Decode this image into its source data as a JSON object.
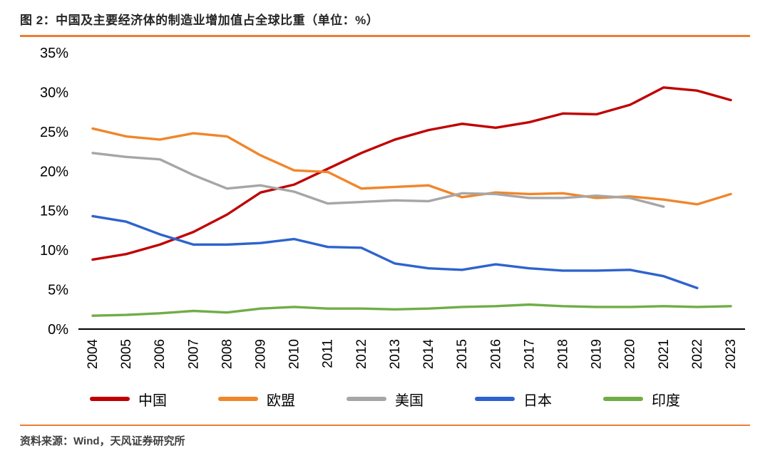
{
  "header": {
    "title": "图 2：中国及主要经济体的制造业增加值占全球比重（单位：%）"
  },
  "footer": {
    "source": "资料来源：Wind，天风证券研究所"
  },
  "accent_color": "#ED7D31",
  "chart_data": {
    "type": "line",
    "title": "中国及主要经济体的制造业增加值占全球比重（单位：%）",
    "x": [
      2004,
      2005,
      2006,
      2007,
      2008,
      2009,
      2010,
      2011,
      2012,
      2013,
      2014,
      2015,
      2016,
      2017,
      2018,
      2019,
      2020,
      2021,
      2022,
      2023
    ],
    "series": [
      {
        "name": "中国",
        "color": "#C00000",
        "values": [
          8.8,
          9.5,
          10.7,
          12.3,
          14.5,
          17.3,
          18.3,
          20.3,
          22.3,
          24.0,
          25.2,
          26.0,
          25.5,
          26.2,
          27.3,
          27.2,
          28.4,
          30.6,
          30.2,
          29.0
        ]
      },
      {
        "name": "欧盟",
        "color": "#F0862B",
        "values": [
          25.4,
          24.4,
          24.0,
          24.8,
          24.4,
          22.0,
          20.1,
          19.9,
          17.8,
          18.0,
          18.2,
          16.7,
          17.3,
          17.1,
          17.2,
          16.6,
          16.8,
          16.4,
          15.8,
          17.1
        ]
      },
      {
        "name": "美国",
        "color": "#A6A6A6",
        "values": [
          22.3,
          21.8,
          21.5,
          19.5,
          17.8,
          18.2,
          17.4,
          15.9,
          16.1,
          16.3,
          16.2,
          17.2,
          17.1,
          16.6,
          16.6,
          16.9,
          16.6,
          15.5,
          null,
          null
        ]
      },
      {
        "name": "日本",
        "color": "#2E63CE",
        "values": [
          14.3,
          13.6,
          12.0,
          10.7,
          10.7,
          10.9,
          11.4,
          10.4,
          10.3,
          8.3,
          7.7,
          7.5,
          8.2,
          7.7,
          7.4,
          7.4,
          7.5,
          6.7,
          5.2,
          null
        ]
      },
      {
        "name": "印度",
        "color": "#70AD47",
        "values": [
          1.7,
          1.8,
          2.0,
          2.3,
          2.1,
          2.6,
          2.8,
          2.6,
          2.6,
          2.5,
          2.6,
          2.8,
          2.9,
          3.1,
          2.9,
          2.8,
          2.8,
          2.9,
          2.8,
          2.9
        ]
      }
    ],
    "ylim": [
      0,
      35
    ],
    "ytick_values": [
      35,
      30,
      25,
      20,
      15,
      10,
      5,
      0
    ],
    "ytick_labels": [
      "35%",
      "30%",
      "25%",
      "20%",
      "15%",
      "10%",
      "5%",
      "0%"
    ],
    "grid": false,
    "legend_position": "bottom"
  }
}
